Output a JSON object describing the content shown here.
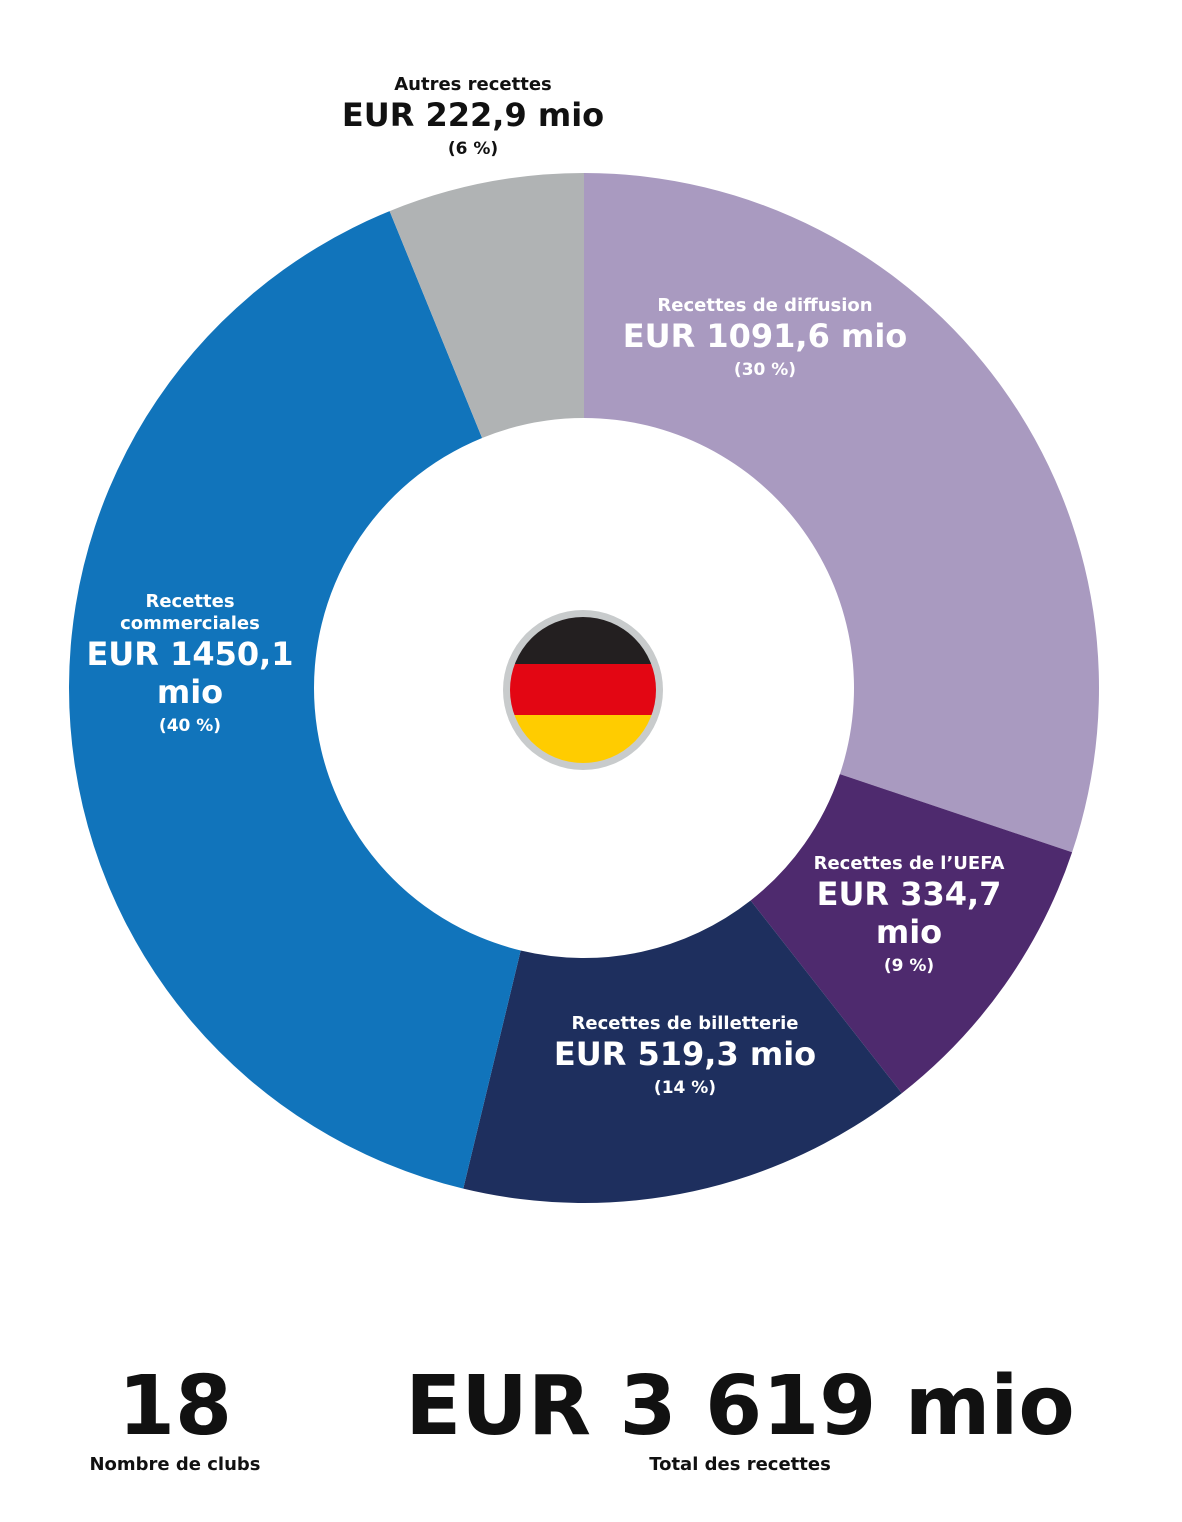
{
  "chart_data": {
    "type": "donut",
    "categories": [
      "Recettes de diffusion",
      "Recettes de l’UEFA",
      "Recettes de billetterie",
      "Recettes commerciales",
      "Autres recettes"
    ],
    "values": [
      1091.6,
      334.7,
      519.3,
      1450.1,
      222.9
    ],
    "value_labels": [
      "EUR 1091,6 mio",
      "EUR 334,7 mio",
      "EUR 519,3 mio",
      "EUR 1450,1 mio",
      "EUR 222,9 mio"
    ],
    "percent_labels": [
      "(30 %)",
      "(9 %)",
      "(14 %)",
      "(40 %)",
      "(6 %)"
    ],
    "colors": [
      "#a99ac0",
      "#4e2a6e",
      "#1e2f5e",
      "#1174bb",
      "#b0b3b4"
    ]
  },
  "stats": [
    {
      "value": 18,
      "label": "Nombre de clubs"
    },
    {
      "value": "EUR 3 619 mio",
      "label": "Total des recettes"
    }
  ]
}
